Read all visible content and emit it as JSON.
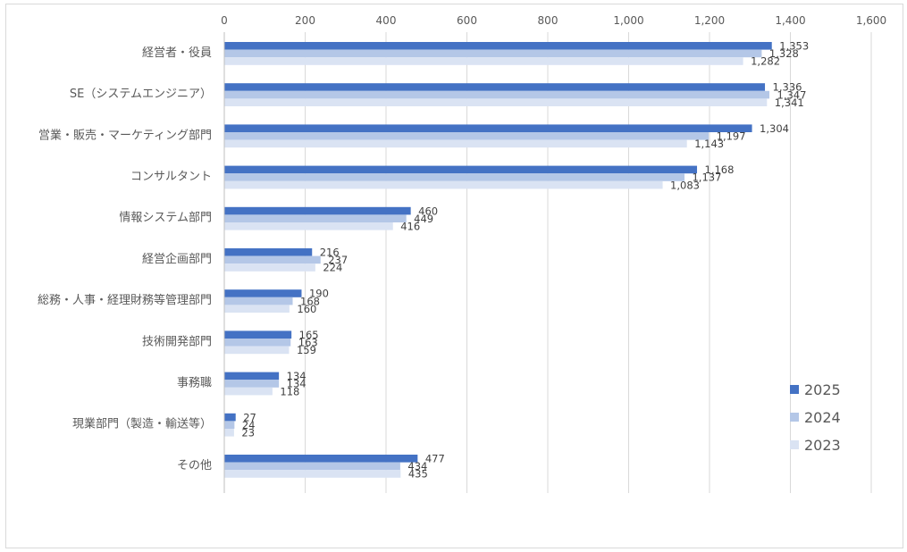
{
  "chart_data": {
    "type": "bar",
    "orientation": "horizontal",
    "title": "",
    "xlabel": "",
    "ylabel": "",
    "xlim": [
      0,
      1600
    ],
    "x_ticks": [
      0,
      200,
      400,
      600,
      800,
      1000,
      1200,
      1400,
      1600
    ],
    "x_tick_labels": [
      "0",
      "200",
      "400",
      "600",
      "800",
      "1,000",
      "1,200",
      "1,400",
      "1,600"
    ],
    "grid": true,
    "legend_position": "bottom-right",
    "categories": [
      "経営者・役員",
      "SE（システムエンジニア）",
      "営業・販売・マーケティング部門",
      "コンサルタント",
      "情報システム部門",
      "経営企画部門",
      "総務・人事・経理財務等管理部門",
      "技術開発部門",
      "事務職",
      "現業部門（製造・輸送等）",
      "その他"
    ],
    "series": [
      {
        "name": "2025",
        "color": "#4472c4",
        "values": [
          1353,
          1336,
          1304,
          1168,
          460,
          216,
          190,
          165,
          134,
          27,
          477
        ],
        "labels": [
          "1,353",
          "1,336",
          "1,304",
          "1,168",
          "460",
          "216",
          "190",
          "165",
          "134",
          "27",
          "477"
        ]
      },
      {
        "name": "2024",
        "color": "#b4c7e7",
        "values": [
          1328,
          1347,
          1197,
          1137,
          449,
          237,
          168,
          163,
          134,
          24,
          434
        ],
        "labels": [
          "1,328",
          "1,347",
          "1,197",
          "1,137",
          "449",
          "237",
          "168",
          "163",
          "134",
          "24",
          "434"
        ]
      },
      {
        "name": "2023",
        "color": "#dae3f3",
        "values": [
          1282,
          1341,
          1143,
          1083,
          416,
          224,
          160,
          159,
          118,
          23,
          435
        ],
        "labels": [
          "1,282",
          "1,341",
          "1,143",
          "1,083",
          "416",
          "224",
          "160",
          "159",
          "118",
          "23",
          "435"
        ]
      }
    ]
  },
  "colors": {
    "grid": "#d9d9d9",
    "axis": "#bfbfbf",
    "text": "#595959"
  }
}
